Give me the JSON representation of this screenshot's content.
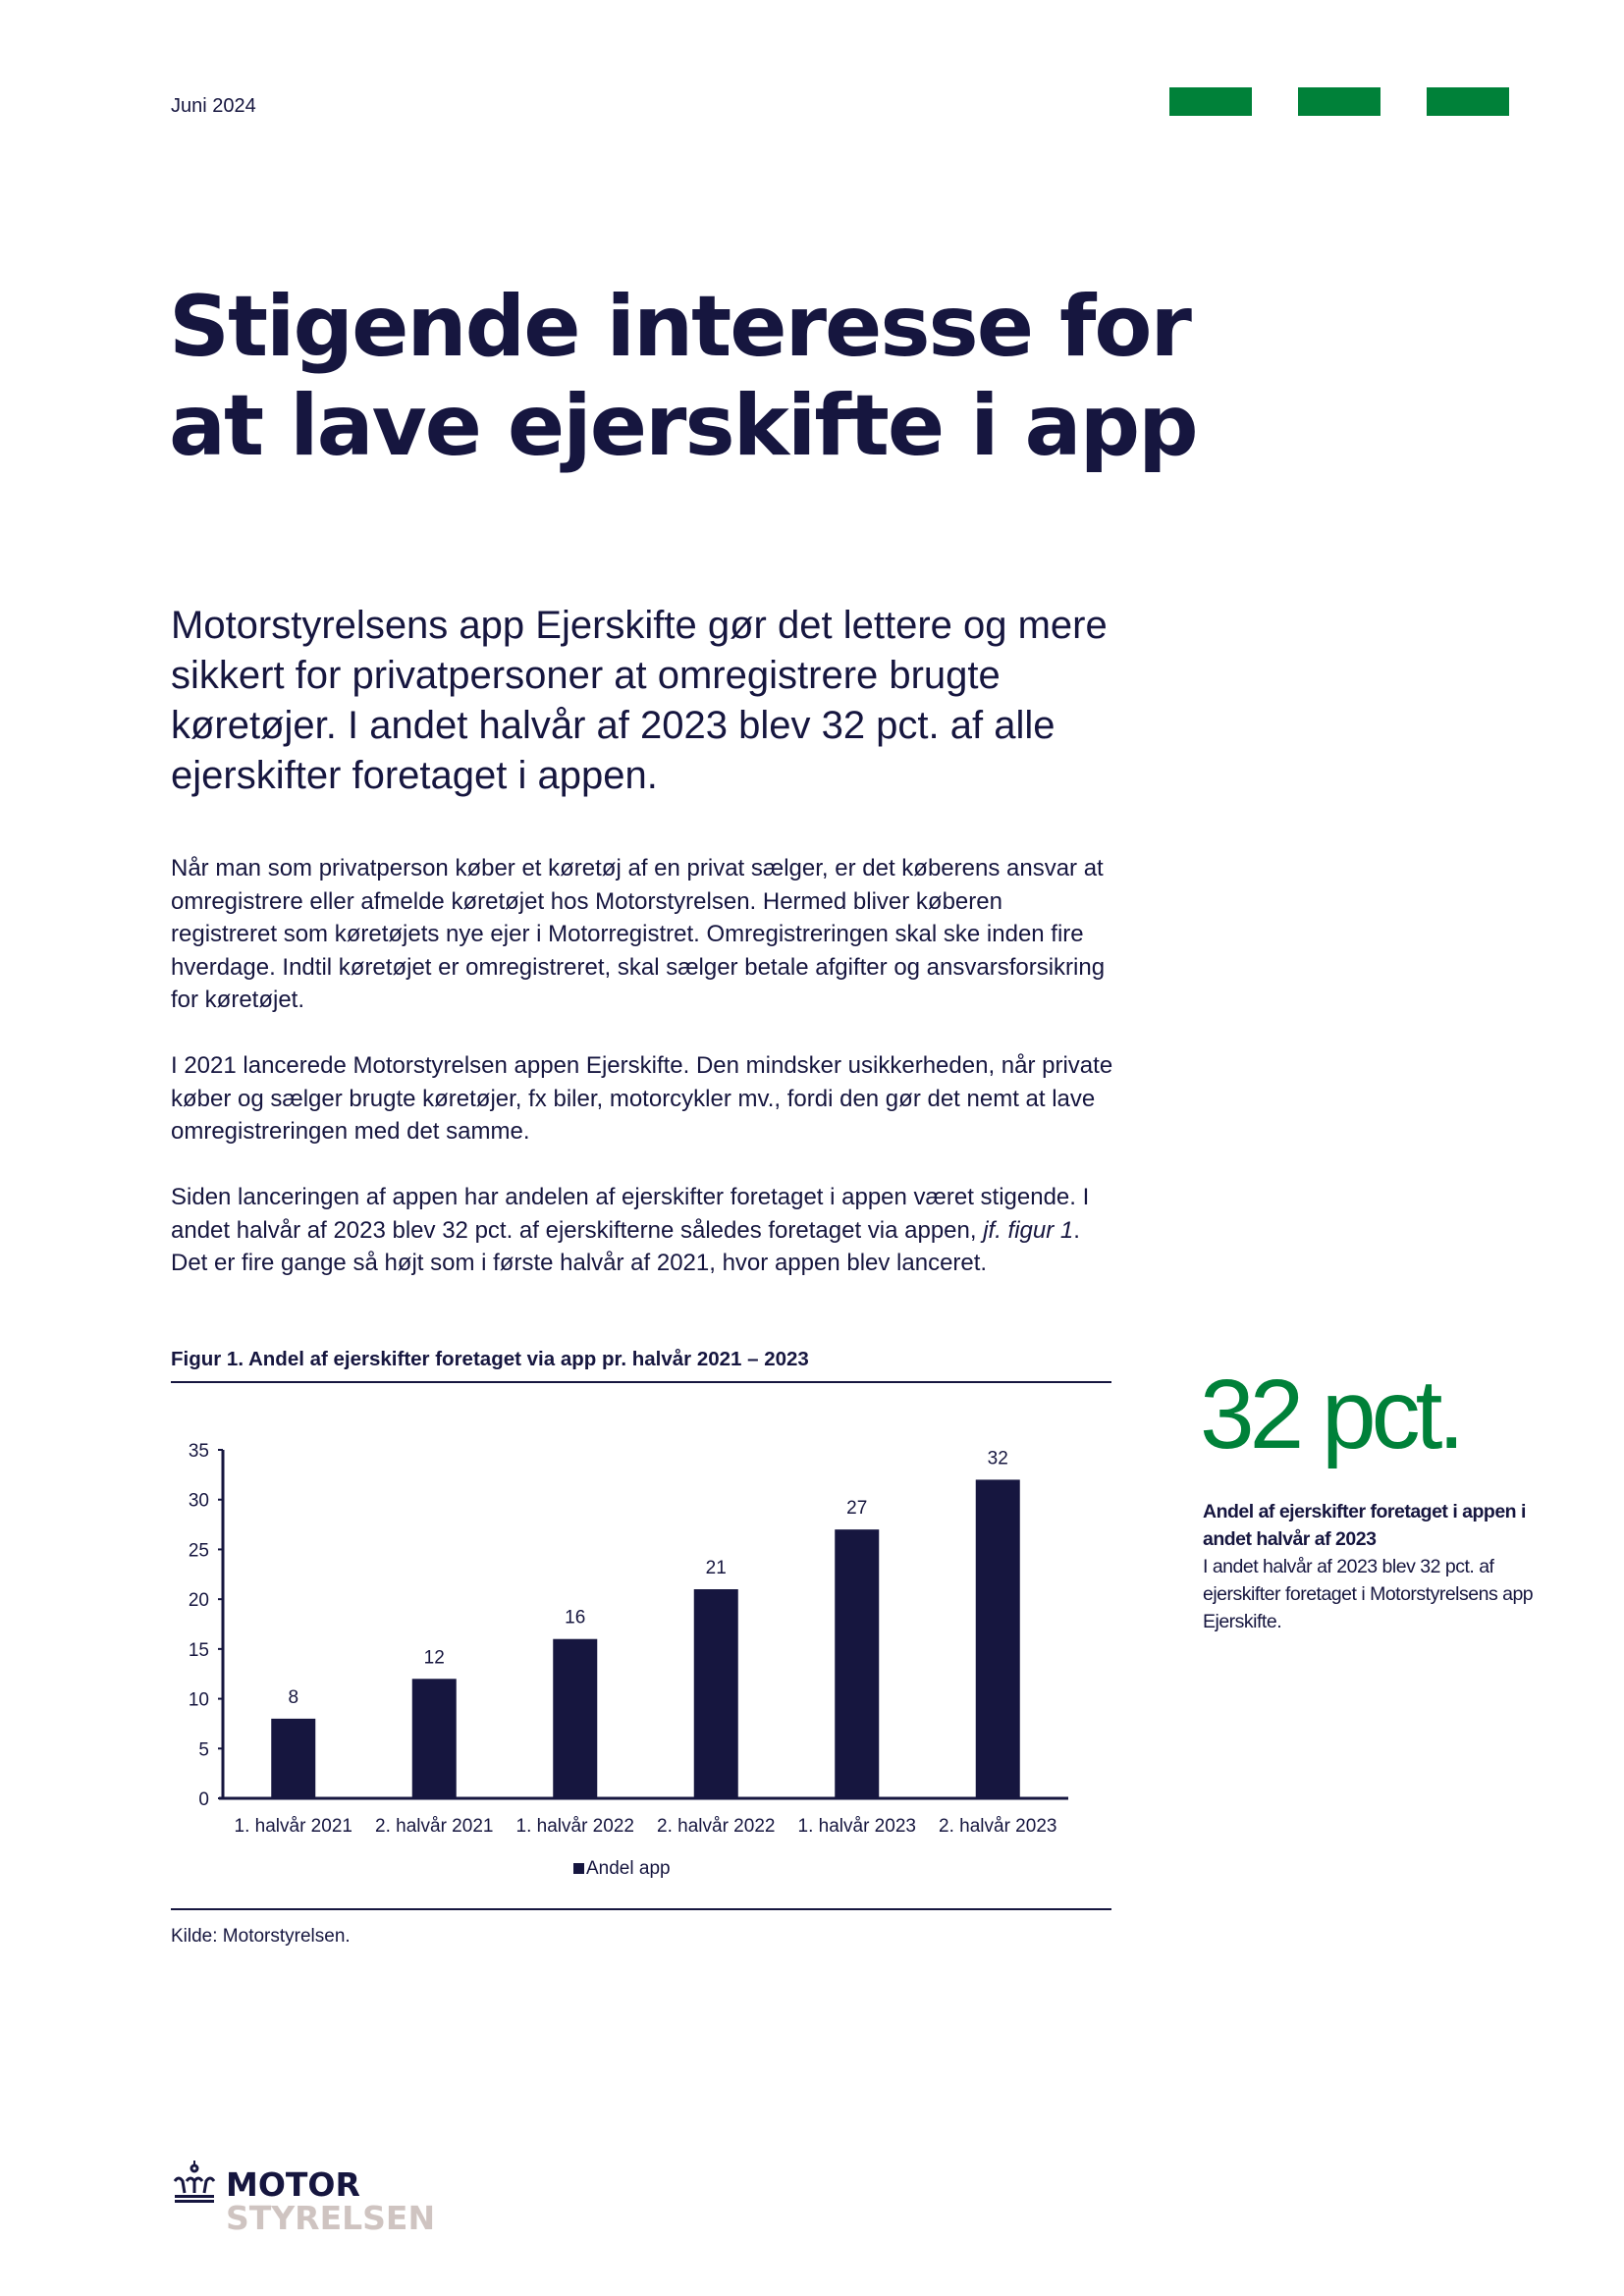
{
  "header": {
    "date": "Juni 2024",
    "accent_color": "#008139"
  },
  "title": {
    "line1": "Stigende interesse for",
    "line2": "at lave ejerskifte i app"
  },
  "lead": "Motorstyrelsens app Ejerskifte gør det lettere og mere sikkert for privatpersoner at omregistrere brugte køretøjer. I andet halvår af 2023 blev 32 pct. af alle ejerskifter foretaget i appen.",
  "body": {
    "p1": "Når man som privatperson køber et køretøj af en privat sælger, er det køberens ansvar at omregistrere eller afmelde køretøjet hos Motorstyrelsen. Hermed bliver køberen registreret som køretøjets nye ejer i Motorregistret. Omregistreringen skal ske inden fire hverdage. Indtil køretøjet er omregistreret, skal sælger betale afgifter og ansvarsforsikring for køretøjet.",
    "p2": "I 2021 lancerede Motorstyrelsen appen Ejerskifte. Den mindsker usikkerheden, når private køber og sælger brugte køretøjer, fx biler, motorcykler mv., fordi den gør det nemt at lave omregistreringen med det samme.",
    "p3_a": "Siden lanceringen af appen har andelen af ejerskifter foretaget i appen været stigende. I andet halvår af 2023 blev 32 pct. af ejerskifterne således foretaget via appen, ",
    "p3_ref": "jf. figur 1",
    "p3_b": ". Det er fire gange så højt som i første halvår af 2021, hvor appen blev lanceret."
  },
  "figure": {
    "title": "Figur 1. Andel af ejerskifter foretaget via app pr. halvår 2021 – 2023",
    "source": "Kilde: Motorstyrelsen."
  },
  "chart_data": {
    "type": "bar",
    "categories": [
      "1. halvår 2021",
      "2. halvår 2021",
      "1. halvår 2022",
      "2. halvår 2022",
      "1. halvår 2023",
      "2. halvår 2023"
    ],
    "series": [
      {
        "name": "Andel app",
        "values": [
          8,
          12,
          16,
          21,
          27,
          32
        ],
        "color": "#16163f"
      }
    ],
    "data_labels": [
      "8",
      "12",
      "16",
      "21",
      "27",
      "32"
    ],
    "yticks": [
      0,
      5,
      10,
      15,
      20,
      25,
      30,
      35
    ],
    "ylim": [
      0,
      35
    ],
    "grid": false,
    "legend": "bottom-center"
  },
  "kpi": {
    "value": "32 pct.",
    "heading": "Andel af ejerskifter foretaget i appen i andet halvår af 2023",
    "text": "I andet halvår af 2023 blev 32 pct. af ejerskifter foretaget i Motorstyrelsens app Ejerskifte."
  },
  "logo": {
    "line1": "MOTOR",
    "line2": "STYRELSEN"
  }
}
